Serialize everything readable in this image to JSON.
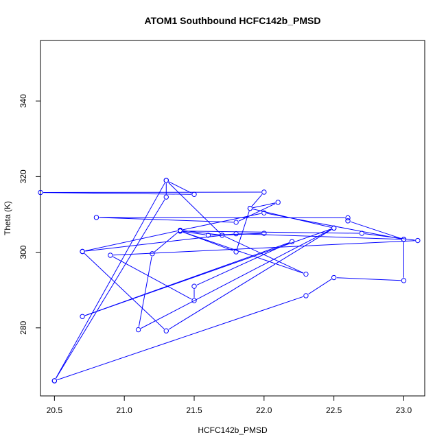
{
  "chart_data": {
    "type": "line",
    "title": "ATOM1 Southbound HCFC142b_PMSD",
    "xlabel": "HCFC142b_PMSD",
    "ylabel": "Theta (K)",
    "xlim": [
      20.4,
      23.15
    ],
    "ylim": [
      262,
      356
    ],
    "xticks": [
      20.5,
      21.0,
      21.5,
      22.0,
      22.5,
      23.0
    ],
    "xtick_labels": [
      "20.5",
      "21.0",
      "21.5",
      "22.0",
      "22.5",
      "23.0"
    ],
    "yticks": [
      280,
      300,
      320,
      340
    ],
    "ytick_labels": [
      "280",
      "300",
      "320",
      "340"
    ],
    "series_color": "#0000ff",
    "marker": "open-circle",
    "grid": false,
    "legend": "none",
    "series": [
      {
        "x": [
          20.5,
          22.3,
          22.5,
          23.0,
          23.0,
          22.6,
          22.6,
          20.8,
          21.8,
          22.1,
          21.9,
          21.8,
          21.4,
          22.3,
          21.7,
          21.3,
          20.5,
          21.3,
          21.3,
          21.5,
          20.4,
          22.0,
          21.9,
          22.5,
          21.1,
          21.2,
          21.4,
          21.7,
          22.0,
          21.6,
          21.4,
          22.7,
          23.1,
          20.9,
          21.5,
          21.5,
          22.2,
          20.7,
          22.5,
          21.3,
          20.7,
          21.4,
          22.0,
          23.0,
          21.8,
          20.7
        ],
        "y": [
          266,
          288.5,
          293.3,
          292.5,
          303.4,
          308.3,
          309.1,
          309.2,
          307.9,
          313.2,
          311.6,
          300.1,
          305.6,
          294.2,
          304.5,
          319.0,
          266,
          314.6,
          319.0,
          315.3,
          315.8,
          315.9,
          311.6,
          306.4,
          279.5,
          299.6,
          305.8,
          304.5,
          305.0,
          304.5,
          305.6,
          305.0,
          303.1,
          299.2,
          287.2,
          291.0,
          302.8,
          283.0,
          306.4,
          279.2,
          300.2,
          305.8,
          310.4,
          303.4,
          304.9,
          300.2
        ]
      }
    ]
  }
}
